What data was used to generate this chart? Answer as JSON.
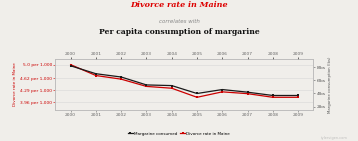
{
  "title_line1": "Divorce rate in Maine",
  "title_line2": "correlates with",
  "title_line3": "Per capita consumption of margarine",
  "years": [
    2000,
    2001,
    2002,
    2003,
    2004,
    2005,
    2006,
    2007,
    2008,
    2009
  ],
  "margarine": [
    8.2,
    7.0,
    6.5,
    5.3,
    5.2,
    4.0,
    4.6,
    4.2,
    3.7,
    3.7
  ],
  "divorce": [
    5.0,
    4.7,
    4.6,
    4.4,
    4.35,
    4.1,
    4.25,
    4.2,
    4.1,
    4.1
  ],
  "margarine_color": "#1a1a1a",
  "divorce_color": "#cc0000",
  "left_yticks": [
    5.0,
    4.62,
    4.29,
    3.96
  ],
  "left_ylabels": [
    "5.0 per 1,000",
    "4.62 per 1,000",
    "4.29 per 1,000",
    "3.96 per 1,000"
  ],
  "right_yticks": [
    8,
    6,
    4,
    2
  ],
  "right_ylabels": [
    "8lbs",
    "6lbs",
    "4lbs",
    "2lbs"
  ],
  "ylim_left": [
    3.75,
    5.15
  ],
  "ylim_right": [
    1.5,
    9.2
  ],
  "legend_labels": [
    "Margarine consumed",
    "Divorce rate in Maine"
  ],
  "bg_color": "#f0eeea",
  "grid_color": "#d8d8d8",
  "title1_color": "#dd0000",
  "title2_color": "#888888",
  "title3_color": "#111111",
  "watermark": "tylervigen.com"
}
